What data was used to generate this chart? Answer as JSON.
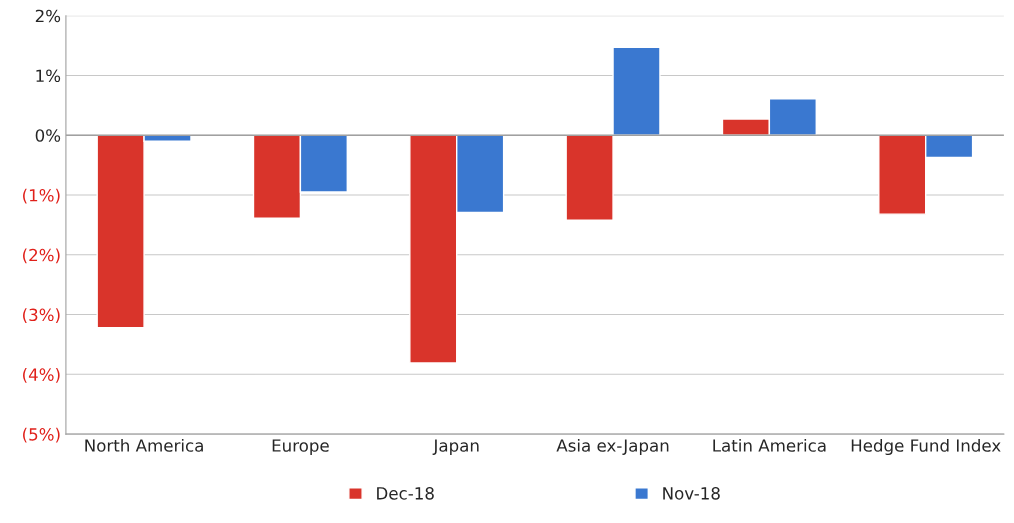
{
  "chart_data": {
    "type": "bar",
    "categories": [
      "North America",
      "Europe",
      "Japan",
      "Asia ex-Japan",
      "Latin America",
      "Hedge Fund Index"
    ],
    "series": [
      {
        "name": "Dec-18",
        "color": "#d9342b",
        "values": [
          -3.22,
          -1.39,
          -3.81,
          -1.42,
          0.27,
          -1.32
        ]
      },
      {
        "name": "Nov-18",
        "color": "#3a78d0",
        "values": [
          -0.1,
          -0.95,
          -1.29,
          1.47,
          0.61,
          -0.37
        ]
      }
    ],
    "ylim": [
      -5,
      2
    ],
    "yticks": [
      {
        "value": -5,
        "label": "(5%)"
      },
      {
        "value": -4,
        "label": "(4%)"
      },
      {
        "value": -3,
        "label": "(3%)"
      },
      {
        "value": -2,
        "label": "(2%)"
      },
      {
        "value": -1,
        "label": "(1%)"
      },
      {
        "value": 0,
        "label": "0%"
      },
      {
        "value": 1,
        "label": "1%"
      },
      {
        "value": 2,
        "label": "2%"
      }
    ],
    "grid": "y",
    "legend": "bottom"
  }
}
